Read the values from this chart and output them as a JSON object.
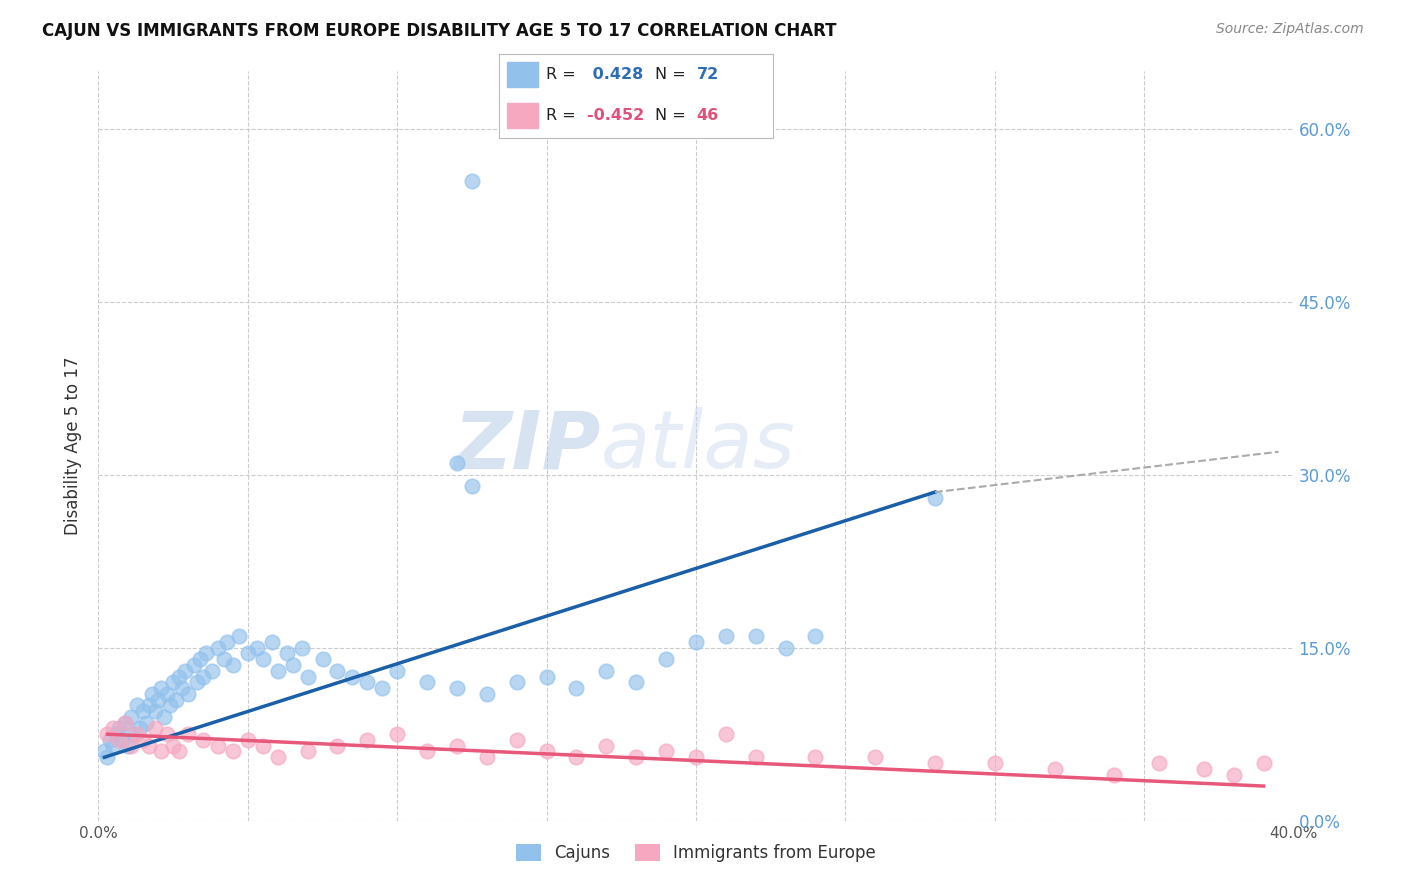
{
  "title": "CAJUN VS IMMIGRANTS FROM EUROPE DISABILITY AGE 5 TO 17 CORRELATION CHART",
  "source": "Source: ZipAtlas.com",
  "ylabel": "Disability Age 5 to 17",
  "watermark_zip": "ZIP",
  "watermark_atlas": "atlas",
  "legend_cajun_R": "0.428",
  "legend_cajun_N": "72",
  "legend_immig_R": "-0.452",
  "legend_immig_N": "46",
  "xlim": [
    0.0,
    0.4
  ],
  "ylim": [
    0.0,
    0.65
  ],
  "xtick_positions": [
    0.0,
    0.05,
    0.1,
    0.15,
    0.2,
    0.25,
    0.3,
    0.35,
    0.4
  ],
  "xtick_labels": [
    "0.0%",
    "",
    "",
    "",
    "",
    "",
    "",
    "",
    "40.0%"
  ],
  "ytick_positions": [
    0.0,
    0.15,
    0.3,
    0.45,
    0.6
  ],
  "ytick_right_labels": [
    "0.0%",
    "15.0%",
    "30.0%",
    "45.0%",
    "60.0%"
  ],
  "cajun_color": "#92C1EC",
  "immig_color": "#F5A8C0",
  "line_cajun_color": "#1A5FA8",
  "line_immig_color": "#E8587A",
  "background_color": "#FFFFFF",
  "grid_color": "#CCCCCC",
  "cajun_x": [
    0.002,
    0.003,
    0.004,
    0.005,
    0.006,
    0.007,
    0.008,
    0.009,
    0.01,
    0.011,
    0.012,
    0.013,
    0.014,
    0.015,
    0.016,
    0.017,
    0.018,
    0.019,
    0.02,
    0.021,
    0.022,
    0.023,
    0.024,
    0.025,
    0.026,
    0.027,
    0.028,
    0.029,
    0.03,
    0.032,
    0.033,
    0.034,
    0.035,
    0.036,
    0.038,
    0.04,
    0.042,
    0.043,
    0.045,
    0.047,
    0.05,
    0.053,
    0.055,
    0.058,
    0.06,
    0.063,
    0.065,
    0.068,
    0.07,
    0.075,
    0.08,
    0.085,
    0.09,
    0.095,
    0.1,
    0.11,
    0.12,
    0.13,
    0.14,
    0.15,
    0.16,
    0.17,
    0.18,
    0.19,
    0.2,
    0.21,
    0.22,
    0.23,
    0.24,
    0.125,
    0.12,
    0.28
  ],
  "cajun_y": [
    0.06,
    0.055,
    0.07,
    0.065,
    0.075,
    0.08,
    0.07,
    0.085,
    0.065,
    0.09,
    0.075,
    0.1,
    0.08,
    0.095,
    0.085,
    0.1,
    0.11,
    0.095,
    0.105,
    0.115,
    0.09,
    0.11,
    0.1,
    0.12,
    0.105,
    0.125,
    0.115,
    0.13,
    0.11,
    0.135,
    0.12,
    0.14,
    0.125,
    0.145,
    0.13,
    0.15,
    0.14,
    0.155,
    0.135,
    0.16,
    0.145,
    0.15,
    0.14,
    0.155,
    0.13,
    0.145,
    0.135,
    0.15,
    0.125,
    0.14,
    0.13,
    0.125,
    0.12,
    0.115,
    0.13,
    0.12,
    0.115,
    0.11,
    0.12,
    0.125,
    0.115,
    0.13,
    0.12,
    0.14,
    0.155,
    0.16,
    0.16,
    0.15,
    0.16,
    0.29,
    0.31,
    0.28
  ],
  "cajun_outlier_x": [
    0.125
  ],
  "cajun_outlier_y": [
    0.555
  ],
  "immig_x": [
    0.003,
    0.005,
    0.007,
    0.009,
    0.011,
    0.013,
    0.015,
    0.017,
    0.019,
    0.021,
    0.023,
    0.025,
    0.027,
    0.03,
    0.035,
    0.04,
    0.045,
    0.05,
    0.055,
    0.06,
    0.07,
    0.08,
    0.09,
    0.1,
    0.11,
    0.12,
    0.13,
    0.14,
    0.15,
    0.16,
    0.17,
    0.18,
    0.19,
    0.2,
    0.21,
    0.22,
    0.24,
    0.26,
    0.28,
    0.3,
    0.32,
    0.34,
    0.355,
    0.37,
    0.38,
    0.39
  ],
  "immig_y": [
    0.075,
    0.08,
    0.07,
    0.085,
    0.065,
    0.075,
    0.07,
    0.065,
    0.08,
    0.06,
    0.075,
    0.065,
    0.06,
    0.075,
    0.07,
    0.065,
    0.06,
    0.07,
    0.065,
    0.055,
    0.06,
    0.065,
    0.07,
    0.075,
    0.06,
    0.065,
    0.055,
    0.07,
    0.06,
    0.055,
    0.065,
    0.055,
    0.06,
    0.055,
    0.075,
    0.055,
    0.055,
    0.055,
    0.05,
    0.05,
    0.045,
    0.04,
    0.05,
    0.045,
    0.04,
    0.05
  ],
  "cajun_line_x": [
    0.002,
    0.28
  ],
  "cajun_line_y": [
    0.055,
    0.285
  ],
  "immig_line_x": [
    0.003,
    0.39
  ],
  "immig_line_y": [
    0.075,
    0.03
  ]
}
